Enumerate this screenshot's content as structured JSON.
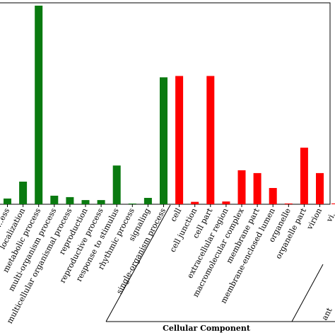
{
  "chart_data": {
    "type": "bar",
    "title": "",
    "xlabel": "Cellular Component",
    "ylabel": "",
    "ylim": [
      0,
      100
    ],
    "grid": false,
    "legend": "none",
    "categories": [
      "...ess",
      "localization",
      "metabolic process",
      "multi-organism process",
      "multicellular organismal process",
      "reproduction",
      "reproductive process",
      "response to stimulus",
      "rhythmic process",
      "signaling",
      "single-organism process",
      "cell",
      "cell junction",
      "cell part",
      "extracellular region",
      "macromolecular complex",
      "membrane part",
      "membrane-enclosed lumen",
      "organelle",
      "organelle part",
      "virion",
      "vi..."
    ],
    "values": [
      2.9,
      11.4,
      100,
      4.3,
      3.6,
      2.1,
      2.1,
      19.5,
      0.3,
      3.2,
      63.9,
      64.6,
      1.2,
      64.6,
      1.4,
      17.1,
      15.7,
      8.2,
      0.4,
      28.5,
      15.7,
      0.4
    ],
    "bar_colors": [
      "#0a7a10",
      "#0a7a10",
      "#0a7a10",
      "#0a7a10",
      "#0a7a10",
      "#0a7a10",
      "#0a7a10",
      "#0a7a10",
      "#0a7a10",
      "#0a7a10",
      "#0a7a10",
      "#ff0000",
      "#ff0000",
      "#ff0000",
      "#ff0000",
      "#ff0000",
      "#ff0000",
      "#ff0000",
      "#ff0000",
      "#ff0000",
      "#ff0000",
      "#ff0000"
    ],
    "group_labels": [
      "ant"
    ],
    "colors": {
      "biological_process": "#0a7a10",
      "cellular_component": "#ff0000"
    }
  }
}
